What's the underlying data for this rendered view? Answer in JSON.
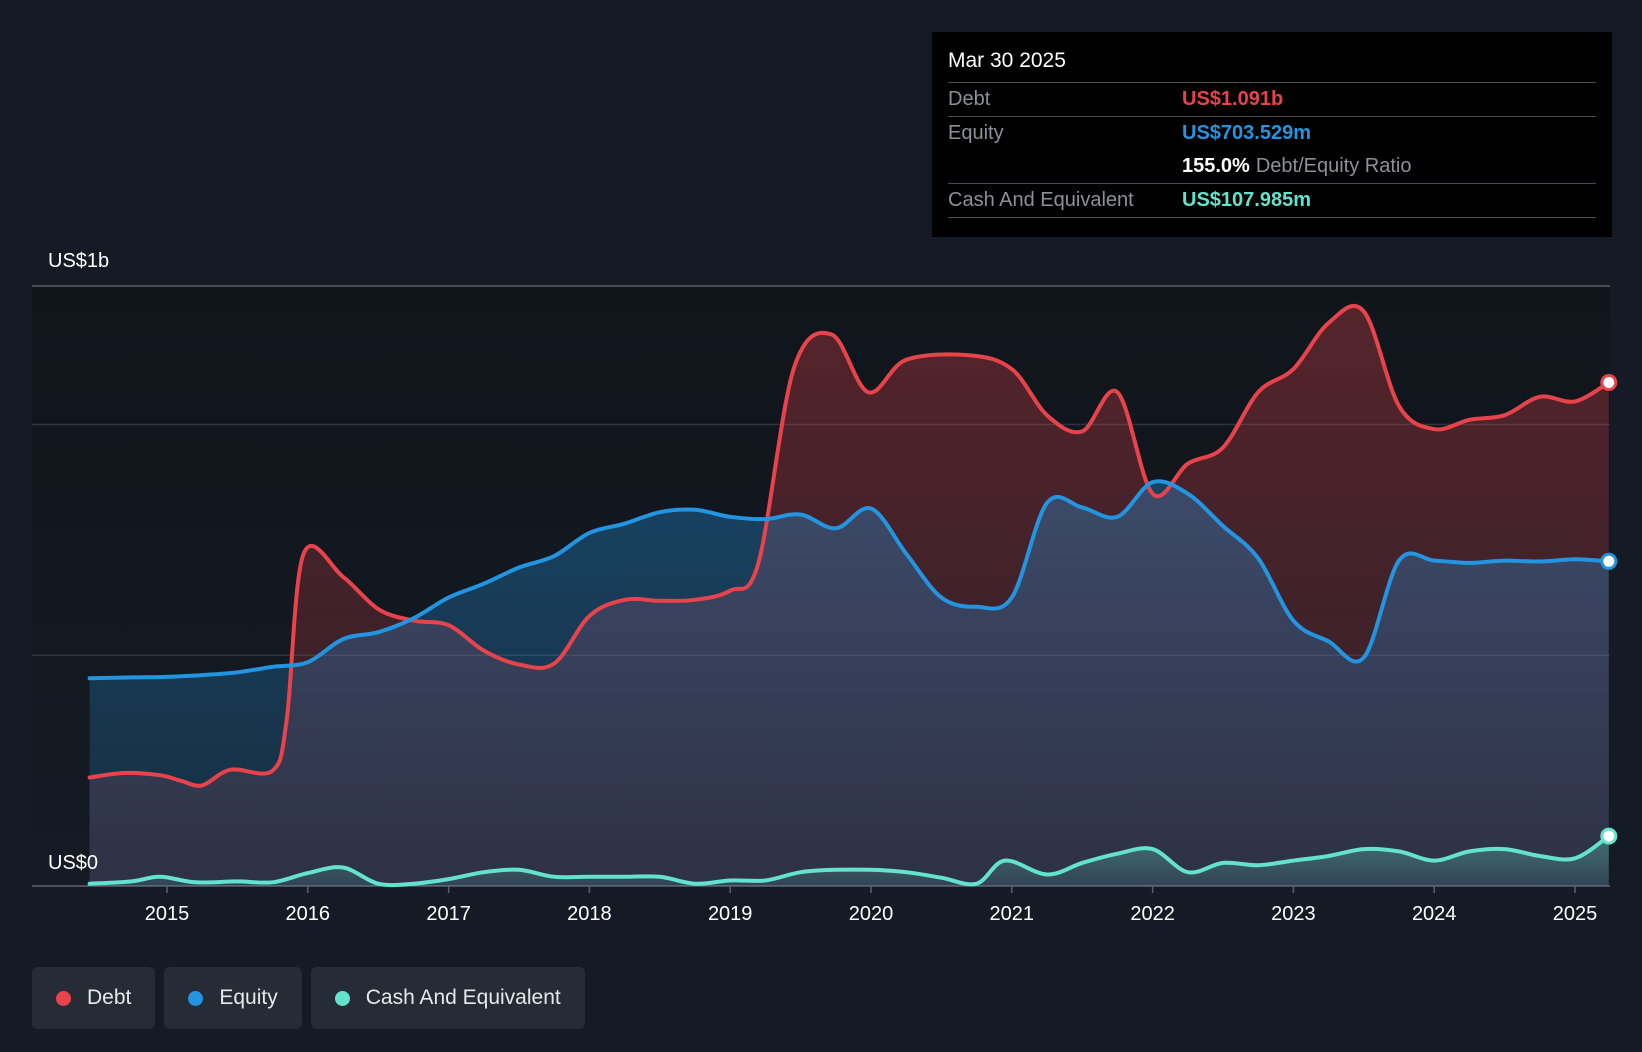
{
  "tooltip": {
    "date": "Mar 30 2025",
    "debt_label": "Debt",
    "debt_value": "US$1.091b",
    "equity_label": "Equity",
    "equity_value": "US$703.529m",
    "ratio_value": "155.0%",
    "ratio_label": "Debt/Equity Ratio",
    "cash_label": "Cash And Equivalent",
    "cash_value": "US$107.985m"
  },
  "legend": {
    "debt": "Debt",
    "equity": "Equity",
    "cash": "Cash And Equivalent"
  },
  "colors": {
    "debt": "#e8434b",
    "equity": "#2394df",
    "cash": "#63e2cc",
    "background": "#151b24"
  },
  "chart_data": {
    "type": "area",
    "title": "",
    "ylabel_top": "US$1b",
    "ylabel_bottom": "US$0",
    "ylim": [
      0,
      1.3
    ],
    "units": "US$ billions",
    "x_ticks": [
      "2015",
      "2016",
      "2017",
      "2018",
      "2019",
      "2020",
      "2021",
      "2022",
      "2023",
      "2024",
      "2025"
    ],
    "series": [
      {
        "name": "Debt",
        "points": [
          [
            2014.45,
            0.235
          ],
          [
            2014.7,
            0.245
          ],
          [
            2014.95,
            0.24
          ],
          [
            2015.1,
            0.228
          ],
          [
            2015.25,
            0.218
          ],
          [
            2015.45,
            0.252
          ],
          [
            2015.75,
            0.25
          ],
          [
            2015.85,
            0.36
          ],
          [
            2015.97,
            0.72
          ],
          [
            2016.25,
            0.67
          ],
          [
            2016.5,
            0.6
          ],
          [
            2016.75,
            0.575
          ],
          [
            2017.0,
            0.565
          ],
          [
            2017.25,
            0.51
          ],
          [
            2017.5,
            0.48
          ],
          [
            2017.75,
            0.482
          ],
          [
            2018.0,
            0.585
          ],
          [
            2018.25,
            0.62
          ],
          [
            2018.5,
            0.618
          ],
          [
            2018.75,
            0.62
          ],
          [
            2019.0,
            0.64
          ],
          [
            2019.2,
            0.7
          ],
          [
            2019.45,
            1.12
          ],
          [
            2019.72,
            1.195
          ],
          [
            2019.98,
            1.07
          ],
          [
            2020.25,
            1.14
          ],
          [
            2020.7,
            1.15
          ],
          [
            2021.0,
            1.12
          ],
          [
            2021.25,
            1.02
          ],
          [
            2021.5,
            0.985
          ],
          [
            2021.75,
            1.07
          ],
          [
            2022.0,
            0.85
          ],
          [
            2022.25,
            0.915
          ],
          [
            2022.5,
            0.95
          ],
          [
            2022.75,
            1.07
          ],
          [
            2023.0,
            1.12
          ],
          [
            2023.25,
            1.22
          ],
          [
            2023.5,
            1.245
          ],
          [
            2023.75,
            1.04
          ],
          [
            2024.0,
            0.99
          ],
          [
            2024.25,
            1.01
          ],
          [
            2024.5,
            1.02
          ],
          [
            2024.75,
            1.06
          ],
          [
            2025.0,
            1.05
          ],
          [
            2025.24,
            1.091
          ]
        ]
      },
      {
        "name": "Equity",
        "points": [
          [
            2014.45,
            0.45
          ],
          [
            2014.75,
            0.452
          ],
          [
            2015.0,
            0.453
          ],
          [
            2015.25,
            0.457
          ],
          [
            2015.5,
            0.463
          ],
          [
            2015.75,
            0.475
          ],
          [
            2016.0,
            0.485
          ],
          [
            2016.25,
            0.535
          ],
          [
            2016.5,
            0.55
          ],
          [
            2016.75,
            0.58
          ],
          [
            2017.0,
            0.625
          ],
          [
            2017.25,
            0.655
          ],
          [
            2017.5,
            0.69
          ],
          [
            2017.75,
            0.715
          ],
          [
            2018.0,
            0.765
          ],
          [
            2018.25,
            0.785
          ],
          [
            2018.5,
            0.81
          ],
          [
            2018.75,
            0.815
          ],
          [
            2019.0,
            0.8
          ],
          [
            2019.25,
            0.795
          ],
          [
            2019.5,
            0.805
          ],
          [
            2019.75,
            0.775
          ],
          [
            2020.0,
            0.818
          ],
          [
            2020.25,
            0.72
          ],
          [
            2020.5,
            0.625
          ],
          [
            2020.75,
            0.605
          ],
          [
            2021.0,
            0.625
          ],
          [
            2021.25,
            0.83
          ],
          [
            2021.5,
            0.82
          ],
          [
            2021.75,
            0.8
          ],
          [
            2022.0,
            0.875
          ],
          [
            2022.25,
            0.85
          ],
          [
            2022.5,
            0.78
          ],
          [
            2022.75,
            0.71
          ],
          [
            2023.0,
            0.575
          ],
          [
            2023.25,
            0.53
          ],
          [
            2023.5,
            0.495
          ],
          [
            2023.75,
            0.705
          ],
          [
            2024.0,
            0.705
          ],
          [
            2024.25,
            0.7
          ],
          [
            2024.5,
            0.705
          ],
          [
            2024.75,
            0.703
          ],
          [
            2025.0,
            0.708
          ],
          [
            2025.24,
            0.7035
          ]
        ]
      },
      {
        "name": "Cash And Equivalent",
        "points": [
          [
            2014.45,
            0.005
          ],
          [
            2014.75,
            0.01
          ],
          [
            2014.95,
            0.02
          ],
          [
            2015.2,
            0.008
          ],
          [
            2015.5,
            0.01
          ],
          [
            2015.75,
            0.008
          ],
          [
            2016.0,
            0.028
          ],
          [
            2016.25,
            0.04
          ],
          [
            2016.5,
            0.005
          ],
          [
            2016.75,
            0.005
          ],
          [
            2017.0,
            0.015
          ],
          [
            2017.25,
            0.03
          ],
          [
            2017.5,
            0.035
          ],
          [
            2017.75,
            0.02
          ],
          [
            2018.0,
            0.02
          ],
          [
            2018.25,
            0.02
          ],
          [
            2018.5,
            0.02
          ],
          [
            2018.75,
            0.005
          ],
          [
            2019.0,
            0.012
          ],
          [
            2019.25,
            0.012
          ],
          [
            2019.5,
            0.03
          ],
          [
            2019.75,
            0.035
          ],
          [
            2020.0,
            0.035
          ],
          [
            2020.25,
            0.03
          ],
          [
            2020.5,
            0.018
          ],
          [
            2020.75,
            0.005
          ],
          [
            2020.95,
            0.055
          ],
          [
            2021.25,
            0.025
          ],
          [
            2021.5,
            0.05
          ],
          [
            2021.75,
            0.07
          ],
          [
            2022.0,
            0.08
          ],
          [
            2022.25,
            0.03
          ],
          [
            2022.5,
            0.05
          ],
          [
            2022.75,
            0.045
          ],
          [
            2023.0,
            0.055
          ],
          [
            2023.25,
            0.065
          ],
          [
            2023.5,
            0.08
          ],
          [
            2023.75,
            0.075
          ],
          [
            2024.0,
            0.055
          ],
          [
            2024.25,
            0.075
          ],
          [
            2024.5,
            0.08
          ],
          [
            2024.75,
            0.065
          ],
          [
            2025.0,
            0.06
          ],
          [
            2025.24,
            0.108
          ]
        ]
      }
    ]
  }
}
